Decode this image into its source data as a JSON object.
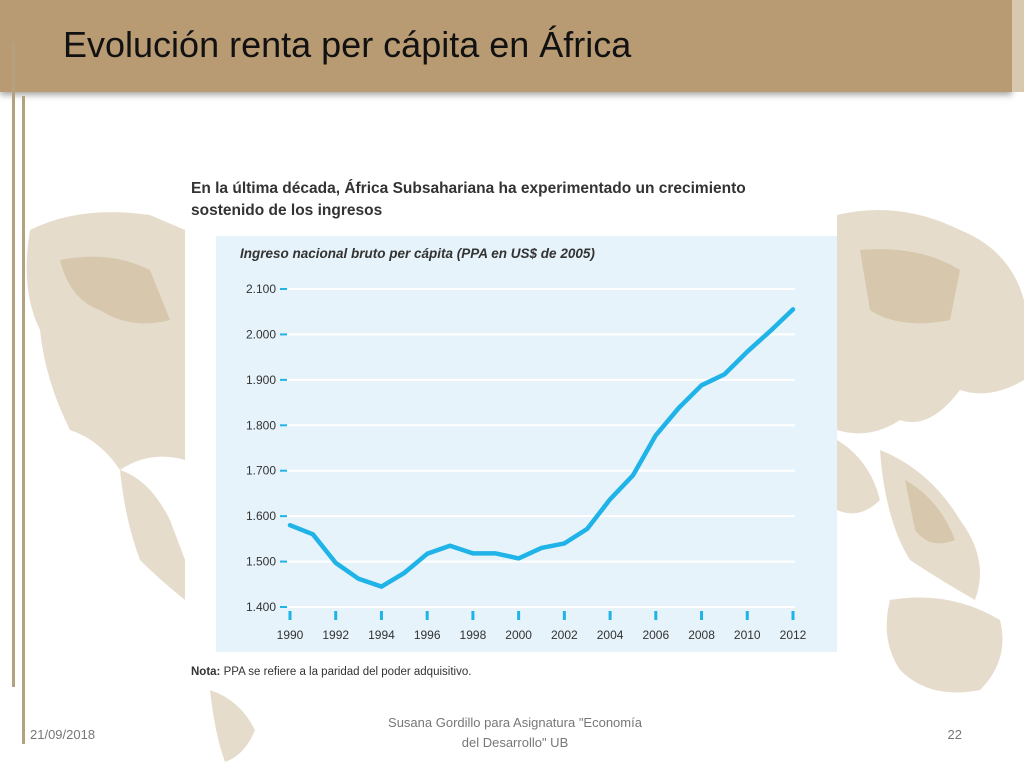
{
  "slide": {
    "title": "Evolución renta per cápita en África",
    "footer_date": "21/09/2018",
    "footer_center_line1": "Susana Gordillo para Asignatura \"Economía",
    "footer_center_line2": "del Desarrollo\" UB",
    "page_number": "22"
  },
  "figure": {
    "headline": "En la última década, África Subsahariana ha experimentado un crecimiento sostenido de los ingresos",
    "note_label": "Nota:",
    "note_text": "PPA se refiere a la paridad del poder adquisitivo."
  },
  "colors": {
    "title_bar": "#b89b72",
    "panel_bg": "#e6f3fa",
    "series_line": "#1fb3e8",
    "map_fill": "#e6dccb"
  },
  "chart_data": {
    "type": "line",
    "title": "Ingreso nacional bruto per cápita (PPA en US$ de 2005)",
    "xlabel": "",
    "ylabel": "",
    "x_ticks": [
      "1990",
      "1992",
      "1994",
      "1996",
      "1998",
      "2000",
      "2002",
      "2004",
      "2006",
      "2008",
      "2010",
      "2012"
    ],
    "y_ticks": [
      "1.400",
      "1.500",
      "1.600",
      "1.700",
      "1.800",
      "1.900",
      "2.000",
      "2.100"
    ],
    "ylim": [
      1400,
      2100
    ],
    "xlim": [
      1990,
      2012
    ],
    "grid": "horizontal",
    "legend": "none",
    "series": [
      {
        "x": [
          1990,
          1991,
          1992,
          1993,
          1994,
          1995,
          1996,
          1997,
          1998,
          1999,
          2000,
          2001,
          2002,
          2003,
          2004,
          2005,
          2006,
          2007,
          2008,
          2009,
          2010,
          2011,
          2012
        ],
        "values": [
          1580,
          1560,
          1497,
          1462,
          1445,
          1475,
          1517,
          1535,
          1518,
          1518,
          1507,
          1530,
          1540,
          1572,
          1637,
          1690,
          1778,
          1838,
          1888,
          1912,
          1962,
          2007,
          2055
        ]
      }
    ]
  }
}
